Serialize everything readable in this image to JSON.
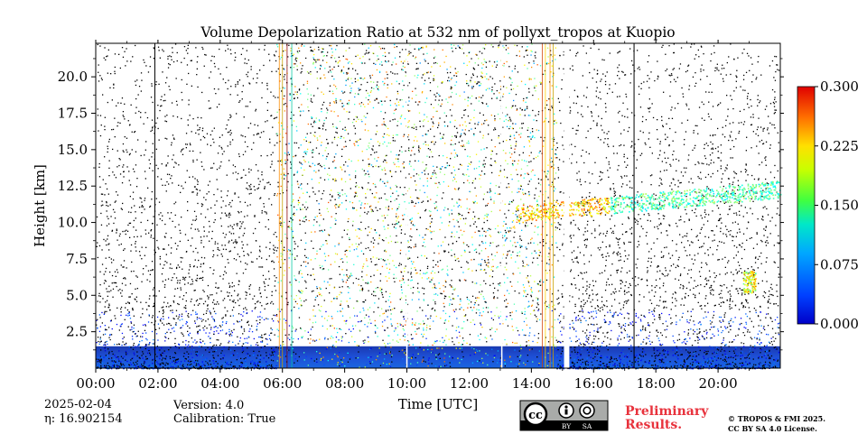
{
  "chart_data": {
    "type": "heatmap",
    "title": "Volume Depolarization Ratio at 532 nm of pollyxt_tropos at Kuopio",
    "xlabel": "Time [UTC]",
    "ylabel": "Height [km]",
    "xlim_hours": [
      0,
      22
    ],
    "ylim_km": [
      0,
      22.3
    ],
    "x_tick_hours": [
      0,
      2,
      4,
      6,
      8,
      10,
      12,
      14,
      16,
      18,
      20
    ],
    "x_tick_labels": [
      "00:00",
      "02:00",
      "04:00",
      "06:00",
      "08:00",
      "10:00",
      "12:00",
      "14:00",
      "16:00",
      "18:00",
      "20:00"
    ],
    "y_tick_values": [
      2.5,
      5.0,
      7.5,
      10.0,
      12.5,
      15.0,
      17.5,
      20.0
    ],
    "y_tick_labels": [
      "2.5",
      "5.0",
      "7.5",
      "10.0",
      "12.5",
      "15.0",
      "17.5",
      "20.0"
    ],
    "colorbar": {
      "range": [
        0.0,
        0.3
      ],
      "tick_values": [
        0.0,
        0.075,
        0.15,
        0.225,
        0.3
      ],
      "tick_labels": [
        "0.000",
        "0.075",
        "0.150",
        "0.225",
        "0.300"
      ],
      "colormap": "jet"
    },
    "features": {
      "near_surface_layer_top_km": 1.5,
      "noisy_period_hours": [
        5.8,
        14.8
      ],
      "data_gap_hours": [
        15.05,
        15.22
      ],
      "profile_markers_hours": [
        1.9,
        10.0,
        13.05,
        17.3
      ],
      "cirrus_layer_km": [
        9,
        12.5
      ],
      "cirrus_period_hours": [
        13.5,
        22
      ]
    },
    "colors": {
      "jet_low": "#0000ff",
      "jet_mid": "#00ff66",
      "jet_high": "#ff0000",
      "surface_blue": "#1e5ee6"
    }
  },
  "meta": {
    "date": "2025-02-04",
    "eta": "η: 16.902154",
    "version": "Version: 4.0",
    "calibration": "Calibration: True"
  },
  "footer": {
    "cc_by": "BY",
    "cc_sa": "SA",
    "preliminary_line1": "Preliminary",
    "preliminary_line2": "Results.",
    "copyright_line1": "© TROPOS & FMI 2025.",
    "copyright_line2": "CC BY SA 4.0 License."
  }
}
